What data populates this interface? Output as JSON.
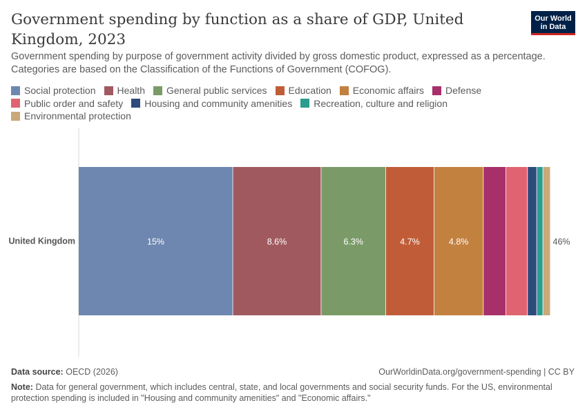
{
  "header": {
    "title": "Government spending by function as a share of GDP, United Kingdom, 2023",
    "subtitle": "Government spending by purpose of government activity divided by gross domestic product, expressed as a percentage. Categories are based on the Classification of the Functions of Government (COFOG).",
    "logo_line1": "Our World",
    "logo_line2": "in Data"
  },
  "chart_data": {
    "type": "bar",
    "orientation": "horizontal",
    "stacked": true,
    "categories": [
      "United Kingdom"
    ],
    "series": [
      {
        "name": "Social protection",
        "color": "#6d87b0",
        "values": [
          15
        ],
        "label": "15%"
      },
      {
        "name": "Health",
        "color": "#a05a5f",
        "values": [
          8.6
        ],
        "label": "8.6%"
      },
      {
        "name": "General public services",
        "color": "#7a9b68",
        "values": [
          6.3
        ],
        "label": "6.3%"
      },
      {
        "name": "Education",
        "color": "#c05d38",
        "values": [
          4.7
        ],
        "label": "4.7%"
      },
      {
        "name": "Economic affairs",
        "color": "#c2813f",
        "values": [
          4.8
        ],
        "label": "4.8%"
      },
      {
        "name": "Defense",
        "color": "#a7306b",
        "values": [
          2.2
        ],
        "label": ""
      },
      {
        "name": "Public order and safety",
        "color": "#e06371",
        "values": [
          2.1
        ],
        "label": ""
      },
      {
        "name": "Housing and community amenities",
        "color": "#2e4b7a",
        "values": [
          0.9
        ],
        "label": ""
      },
      {
        "name": "Recreation, culture and religion",
        "color": "#2a9d8f",
        "values": [
          0.6
        ],
        "label": ""
      },
      {
        "name": "Environmental protection",
        "color": "#c9a97a",
        "values": [
          0.7
        ],
        "label": ""
      }
    ],
    "total_label": "46%",
    "xlim": [
      0,
      46
    ],
    "legend_position": "top"
  },
  "footer": {
    "source_label": "Data source:",
    "source_text": "OECD (2026)",
    "url": "OurWorldinData.org/government-spending | CC BY",
    "note_label": "Note:",
    "note_text": "Data for general government, which includes central, state, and local governments and social security funds. For the US, environmental protection spending is included in \"Housing and community amenities\" and \"Economic affairs.\""
  }
}
